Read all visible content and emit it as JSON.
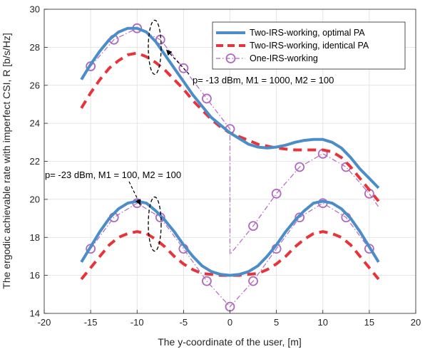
{
  "chart_data": {
    "type": "line",
    "xlabel": "The y-coordinate of the user, [m]",
    "ylabel": "The ergodic achievable rate with imperfect CSI, R [b/s/Hz]",
    "xlim": [
      -20,
      20
    ],
    "ylim": [
      14,
      30
    ],
    "xticks": [
      -20,
      -15,
      -10,
      -5,
      0,
      5,
      10,
      15,
      20
    ],
    "yticks": [
      14,
      16,
      18,
      20,
      22,
      24,
      26,
      28,
      30
    ],
    "grid": true,
    "legend_position": "top-right",
    "legend": [
      "Two-IRS-working, optimal PA",
      "Two-IRS-working, identical PA",
      "One-IRS-working"
    ],
    "colors": {
      "optimal": "#4a8dc8",
      "identical": "#e8333a",
      "one_irs": "#b068c0"
    },
    "annotations": [
      {
        "text": "p= -13 dBm, M1 = 1000, M2 = 100",
        "arrow_to": [
          -7.2,
          28.0
        ],
        "ellipse_center": [
          -8,
          28.0
        ]
      },
      {
        "text": "p= -23 dBm, M1 = 100, M2 = 100",
        "arrow_to": [
          -9.2,
          19.5
        ],
        "ellipse_center": [
          -8,
          18.7
        ]
      }
    ],
    "series": [
      {
        "name": "Two-IRS-working, optimal PA",
        "group": "p= -13 dBm",
        "style": "solid",
        "x": [
          -16,
          -15,
          -14,
          -13,
          -12,
          -11,
          -10,
          -9,
          -8,
          -7,
          -6,
          -5,
          -4,
          -3,
          -2,
          -1,
          0,
          1,
          2,
          3,
          4,
          5,
          6,
          7,
          8,
          9,
          10,
          11,
          12,
          13,
          14,
          15,
          16
        ],
        "y": [
          26.3,
          27.1,
          27.8,
          28.4,
          28.8,
          29.0,
          29.0,
          28.8,
          28.3,
          27.6,
          26.9,
          26.2,
          25.5,
          24.9,
          24.3,
          23.9,
          23.5,
          23.2,
          22.9,
          22.75,
          22.7,
          22.75,
          22.85,
          23.0,
          23.1,
          23.15,
          23.15,
          23.0,
          22.7,
          22.2,
          21.6,
          21.1,
          20.6
        ]
      },
      {
        "name": "Two-IRS-working, identical PA",
        "group": "p= -13 dBm",
        "style": "dashed",
        "x": [
          -16,
          -15,
          -14,
          -13,
          -12,
          -11,
          -10,
          -9,
          -8,
          -7,
          -6,
          -5,
          -4,
          -3,
          -2,
          -1,
          0,
          1,
          2,
          3,
          4,
          5,
          6,
          7,
          8,
          9,
          10,
          11,
          12,
          13,
          14,
          15,
          16
        ],
        "y": [
          24.8,
          25.6,
          26.3,
          26.9,
          27.3,
          27.6,
          27.7,
          27.5,
          27.2,
          26.8,
          26.3,
          25.8,
          25.2,
          24.7,
          24.2,
          23.8,
          23.5,
          23.3,
          23.1,
          22.9,
          22.8,
          22.7,
          22.65,
          22.6,
          22.6,
          22.6,
          22.6,
          22.5,
          22.2,
          21.7,
          21.1,
          20.5,
          19.9
        ]
      },
      {
        "name": "One-IRS-working",
        "group": "p= -13 dBm",
        "style": "dashdot-marker",
        "x": [
          -15,
          -12.5,
          -10,
          -7.5,
          -5,
          -2.5,
          0,
          0,
          2.5,
          5,
          7.5,
          10,
          12.5,
          15,
          16
        ],
        "y": [
          27.0,
          28.4,
          29.0,
          28.4,
          26.9,
          25.3,
          23.7,
          17.1,
          18.6,
          20.3,
          21.7,
          22.4,
          21.7,
          20.3,
          19.6
        ],
        "markers": [
          [
            -15,
            27.0
          ],
          [
            -12.5,
            28.4
          ],
          [
            -10,
            29.0
          ],
          [
            -7.5,
            28.4
          ],
          [
            -5,
            26.9
          ],
          [
            -2.5,
            25.3
          ],
          [
            0,
            23.7
          ],
          [
            2.5,
            18.6
          ],
          [
            5,
            20.3
          ],
          [
            7.5,
            21.7
          ],
          [
            10,
            22.4
          ],
          [
            12.5,
            21.7
          ],
          [
            15,
            20.3
          ]
        ]
      },
      {
        "name": "Two-IRS-working, optimal PA",
        "group": "p= -23 dBm",
        "style": "solid",
        "x": [
          -16,
          -15,
          -14,
          -13,
          -12,
          -11,
          -10,
          -9,
          -8,
          -7,
          -6,
          -5,
          -4,
          -3,
          -2,
          -1,
          0,
          1,
          2,
          3,
          4,
          5,
          6,
          7,
          8,
          9,
          10,
          11,
          12,
          13,
          14,
          15,
          16
        ],
        "y": [
          16.7,
          17.5,
          18.3,
          19.0,
          19.5,
          19.8,
          19.9,
          19.8,
          19.4,
          18.9,
          18.3,
          17.6,
          17.0,
          16.5,
          16.2,
          16.05,
          16.0,
          16.05,
          16.2,
          16.5,
          17.0,
          17.6,
          18.3,
          18.9,
          19.4,
          19.8,
          19.9,
          19.8,
          19.5,
          19.0,
          18.3,
          17.5,
          16.7
        ]
      },
      {
        "name": "Two-IRS-working, identical PA",
        "group": "p= -23 dBm",
        "style": "dashed",
        "x": [
          -16,
          -15,
          -14,
          -13,
          -12,
          -11,
          -10,
          -9,
          -8,
          -7,
          -6,
          -5,
          -4,
          -3,
          -2,
          -1,
          0,
          1,
          2,
          3,
          4,
          5,
          6,
          7,
          8,
          9,
          10,
          11,
          12,
          13,
          14,
          15,
          16
        ],
        "y": [
          15.8,
          16.4,
          17.0,
          17.6,
          18.0,
          18.2,
          18.3,
          18.2,
          17.9,
          17.5,
          17.0,
          16.6,
          16.3,
          16.1,
          16.05,
          16.0,
          16.0,
          16.0,
          16.05,
          16.1,
          16.3,
          16.6,
          17.0,
          17.5,
          17.9,
          18.2,
          18.3,
          18.2,
          18.0,
          17.6,
          17.0,
          16.4,
          15.8
        ]
      },
      {
        "name": "One-IRS-working",
        "group": "p= -23 dBm",
        "style": "dashdot-marker",
        "x": [
          -15,
          -12.5,
          -10,
          -7.5,
          -5,
          -2.5,
          0,
          2.5,
          5,
          7.5,
          10,
          12.5,
          15
        ],
        "y": [
          17.4,
          19.05,
          19.8,
          19.05,
          17.4,
          15.7,
          14.35,
          15.7,
          17.4,
          19.05,
          19.8,
          19.05,
          17.4
        ],
        "markers": [
          [
            -15,
            17.4
          ],
          [
            -12.5,
            19.05
          ],
          [
            -10,
            19.8
          ],
          [
            -7.5,
            19.05
          ],
          [
            -5,
            17.4
          ],
          [
            -2.5,
            15.7
          ],
          [
            0,
            14.35
          ],
          [
            2.5,
            15.7
          ],
          [
            5,
            17.4
          ],
          [
            7.5,
            19.05
          ],
          [
            10,
            19.8
          ],
          [
            12.5,
            19.05
          ],
          [
            15,
            17.4
          ]
        ]
      }
    ]
  }
}
